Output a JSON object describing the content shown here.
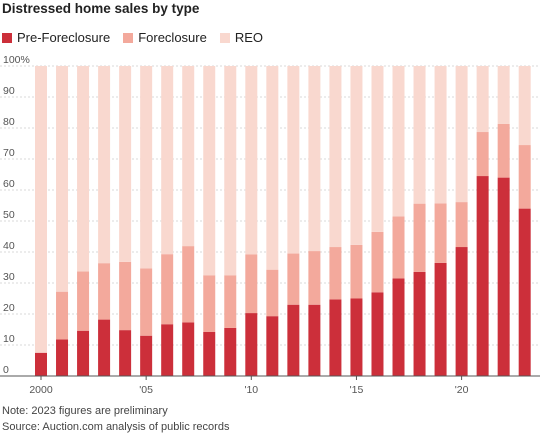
{
  "title": "Distressed home sales by type",
  "colors": {
    "pre_foreclosure": "#cc2f3a",
    "foreclosure": "#f3a99c",
    "reo": "#f9d8cf",
    "grid": "#d8d8d8",
    "axis": "#999999"
  },
  "legend": [
    {
      "label": "Pre-Foreclosure",
      "color": "#cc2f3a"
    },
    {
      "label": "Foreclosure",
      "color": "#f3a99c"
    },
    {
      "label": "REO",
      "color": "#f9d8cf"
    }
  ],
  "notes": {
    "note": "Note: 2023 figures are preliminary",
    "source": "Source: Auction.com analysis of public records"
  },
  "chart_data": {
    "type": "bar",
    "stacked": true,
    "title": "Distressed home sales by type",
    "categories": [
      2000,
      2001,
      2002,
      2003,
      2004,
      2005,
      2006,
      2007,
      2008,
      2009,
      2010,
      2011,
      2012,
      2013,
      2014,
      2015,
      2016,
      2017,
      2018,
      2019,
      2020,
      2021,
      2022,
      2023
    ],
    "x_tick_labels": [
      {
        "at": 2000,
        "label": "2000"
      },
      {
        "at": 2005,
        "label": "'05"
      },
      {
        "at": 2010,
        "label": "'10"
      },
      {
        "at": 2015,
        "label": "'15"
      },
      {
        "at": 2020,
        "label": "'20"
      }
    ],
    "series": [
      {
        "name": "Pre-Foreclosure",
        "color": "#cc2f3a",
        "values": [
          7.5,
          11.8,
          14.6,
          18.2,
          14.8,
          13,
          16.7,
          17.3,
          14.2,
          15.5,
          20.3,
          19.3,
          23,
          23,
          24.7,
          25,
          27,
          31.5,
          33.6,
          36.5,
          41.6,
          64.5,
          64,
          54
        ]
      },
      {
        "name": "Foreclosure",
        "color": "#f3a99c",
        "values": [
          0,
          15.4,
          19.1,
          18.2,
          22,
          21.7,
          22.6,
          24.6,
          18.3,
          17,
          18.9,
          15,
          16.5,
          17.3,
          16.9,
          17.3,
          19.5,
          20,
          22,
          19.2,
          14.5,
          14.2,
          17.3,
          20.5
        ]
      },
      {
        "name": "REO",
        "color": "#f9d8cf",
        "values": [
          92.5,
          72.8,
          66.3,
          63.6,
          63.2,
          65.3,
          60.7,
          58.1,
          67.5,
          67.5,
          60.8,
          65.7,
          60.5,
          59.7,
          58.4,
          57.7,
          53.5,
          48.5,
          44.4,
          44.3,
          43.9,
          21.3,
          18.7,
          25.5
        ]
      }
    ],
    "y_ticks": [
      0,
      10,
      20,
      30,
      40,
      50,
      60,
      70,
      80,
      90,
      100
    ],
    "y_top_tick_label": "100%",
    "ylim": [
      0,
      100
    ],
    "xlabel": "",
    "ylabel": "",
    "grid": true
  }
}
